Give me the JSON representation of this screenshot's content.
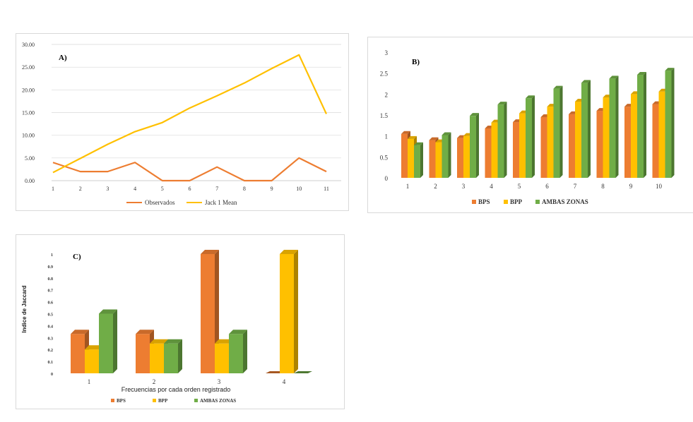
{
  "colors": {
    "orange": "#ED7D31",
    "yellow": "#FFC000",
    "green": "#70AD47",
    "grid": "#d9d9d9"
  },
  "chart_data": [
    {
      "type": "line",
      "panel_label": "A)",
      "x": [
        "1",
        "2",
        "3",
        "4",
        "5",
        "6",
        "7",
        "8",
        "9",
        "10",
        "11"
      ],
      "y_ticks": [
        "0.00",
        "5.00",
        "10.00",
        "15.00",
        "20.00",
        "25.00",
        "30.00"
      ],
      "ylim": [
        0,
        30
      ],
      "series": [
        {
          "name": "Observados",
          "color": "#ED7D31",
          "values": [
            4,
            2,
            2,
            4,
            0,
            0,
            3,
            0,
            0,
            5,
            2
          ]
        },
        {
          "name": "Jack 1 Mean",
          "color": "#FFC000",
          "values": [
            1.8,
            4.9,
            8.0,
            10.8,
            12.8,
            16.0,
            18.7,
            21.5,
            24.7,
            27.7,
            14.7
          ]
        }
      ]
    },
    {
      "type": "bar",
      "panel_label": "B)",
      "categories": [
        "1",
        "2",
        "3",
        "4",
        "5",
        "6",
        "7",
        "8",
        "9",
        "10"
      ],
      "y_ticks": [
        "0",
        "0.5",
        "1",
        "1.5",
        "2",
        "2.5",
        "3"
      ],
      "ylim": [
        0,
        3
      ],
      "series": [
        {
          "name": "BPS",
          "color": "#ED7D31",
          "values": [
            1.05,
            0.9,
            0.95,
            1.18,
            1.33,
            1.45,
            1.52,
            1.6,
            1.7,
            1.76
          ]
        },
        {
          "name": "BPP",
          "color": "#FFC000",
          "values": [
            0.93,
            0.85,
            1.0,
            1.32,
            1.54,
            1.7,
            1.82,
            1.92,
            2.0,
            2.06
          ]
        },
        {
          "name": "AMBAS ZONAS",
          "color": "#70AD47",
          "values": [
            0.78,
            1.02,
            1.48,
            1.75,
            1.9,
            2.13,
            2.27,
            2.37,
            2.46,
            2.56
          ]
        }
      ]
    },
    {
      "type": "bar",
      "panel_label": "C)",
      "categories": [
        "1",
        "2",
        "3",
        "4"
      ],
      "y_ticks": [
        "0",
        "0.1",
        "0.2",
        "0.3",
        "0.4",
        "0.5",
        "0.6",
        "0.7",
        "0.8",
        "0.9",
        "1"
      ],
      "ylim": [
        0,
        1
      ],
      "ylabel": "Indice de Jaccard",
      "xlabel": "Frecuencias por cada orden registrado",
      "series": [
        {
          "name": "BPS",
          "color": "#ED7D31",
          "values": [
            0.33,
            0.33,
            1.0,
            0.0
          ]
        },
        {
          "name": "BPP",
          "color": "#FFC000",
          "values": [
            0.2,
            0.25,
            0.25,
            1.0
          ]
        },
        {
          "name": "AMBAS ZONAS",
          "color": "#70AD47",
          "values": [
            0.5,
            0.25,
            0.33,
            0.0
          ]
        }
      ]
    }
  ]
}
